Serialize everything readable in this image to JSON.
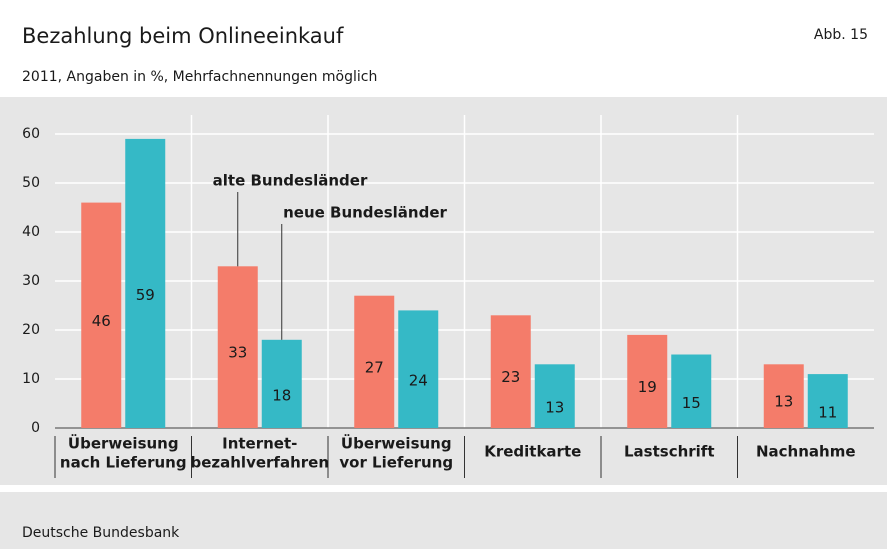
{
  "chart_data": {
    "type": "bar",
    "title": "Bezahlung beim Onlineeinkauf",
    "figure_label": "Abb. 15",
    "subtitle": "2011, Angaben in %, Mehrfachnennungen möglich",
    "source": "Deutsche Bundesbank",
    "categories": [
      [
        "Überweisung",
        "nach Lieferung"
      ],
      [
        "Internet-",
        "bezahlverfahren"
      ],
      [
        "Überweisung",
        "vor Lieferung"
      ],
      [
        "Kreditkarte"
      ],
      [
        "Lastschrift"
      ],
      [
        "Nachnahme"
      ]
    ],
    "series": [
      {
        "name": "alte Bundesländer",
        "color": "#f47c6a",
        "values": [
          46,
          33,
          27,
          23,
          19,
          13
        ]
      },
      {
        "name": "neue Bundesländer",
        "color": "#35b9c6",
        "values": [
          59,
          18,
          24,
          13,
          15,
          11
        ]
      }
    ],
    "ylim": [
      0,
      60
    ],
    "yticks": [
      0,
      10,
      20,
      30,
      40,
      50,
      60
    ],
    "grid": true
  }
}
